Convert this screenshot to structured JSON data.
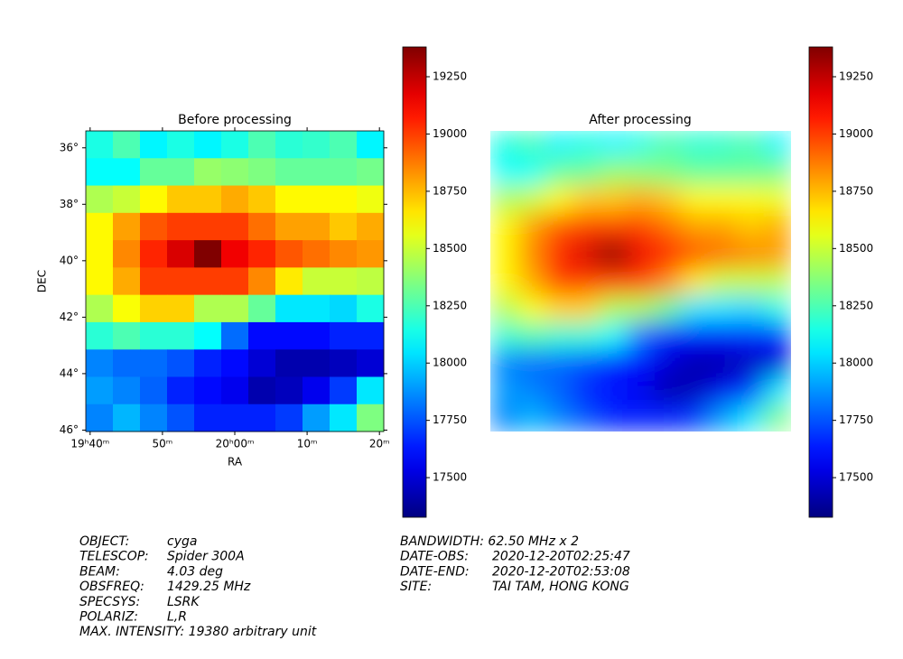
{
  "chart_data": [
    {
      "type": "heatmap",
      "title": "Before processing",
      "xlabel": "RA",
      "ylabel": "DEC",
      "xlim": [
        39.4,
        80.6
      ],
      "xticks": [
        {
          "value": 40,
          "label": "19ʰ40ᵐ"
        },
        {
          "value": 50,
          "label": "50ᵐ"
        },
        {
          "value": 60,
          "label": "20ʰ00ᵐ"
        },
        {
          "value": 70,
          "label": "10ᵐ"
        },
        {
          "value": 80,
          "label": "20ᵐ"
        }
      ],
      "ylim": [
        35.4,
        46.05
      ],
      "yticks": [
        {
          "value": 36,
          "label": "36°"
        },
        {
          "value": 38,
          "label": "38°"
        },
        {
          "value": 40,
          "label": "40°"
        },
        {
          "value": 42,
          "label": "42°"
        },
        {
          "value": 44,
          "label": "44°"
        },
        {
          "value": 46,
          "label": "46°"
        }
      ],
      "colormap": "jet",
      "clim": [
        17327,
        19380
      ],
      "cticks": [
        17500,
        17750,
        18000,
        18250,
        18500,
        18750,
        19000,
        19250
      ],
      "values": [
        [
          18150,
          18250,
          18080,
          18150,
          18080,
          18150,
          18250,
          18180,
          18200,
          18250,
          18080
        ],
        [
          18100,
          18100,
          18300,
          18300,
          18400,
          18380,
          18350,
          18300,
          18300,
          18300,
          18330
        ],
        [
          18450,
          18500,
          18620,
          18720,
          18720,
          18780,
          18720,
          18620,
          18620,
          18620,
          18580
        ],
        [
          18620,
          18800,
          18950,
          19000,
          19000,
          19000,
          18900,
          18800,
          18800,
          18720,
          18780
        ],
        [
          18620,
          18850,
          19050,
          19200,
          19380,
          19150,
          19050,
          18950,
          18900,
          18850,
          18820
        ],
        [
          18620,
          18780,
          19000,
          19000,
          19000,
          19000,
          18850,
          18650,
          18500,
          18500,
          18480
        ],
        [
          18450,
          18600,
          18700,
          18700,
          18450,
          18450,
          18300,
          18050,
          18050,
          18020,
          18150
        ],
        [
          18180,
          18250,
          18180,
          18180,
          18100,
          17800,
          17600,
          17600,
          17600,
          17650,
          17650
        ],
        [
          17850,
          17800,
          17800,
          17750,
          17650,
          17600,
          17500,
          17420,
          17420,
          17450,
          17500
        ],
        [
          17900,
          17850,
          17780,
          17650,
          17600,
          17550,
          17420,
          17450,
          17550,
          17700,
          18050
        ],
        [
          17850,
          17950,
          17850,
          17750,
          17650,
          17650,
          17650,
          17700,
          17900,
          18050,
          18350
        ]
      ]
    },
    {
      "type": "smoothed-heatmap",
      "title": "After processing"
    }
  ],
  "info": {
    "left": [
      [
        "OBJECT:",
        "cyga"
      ],
      [
        "TELESCOP:",
        "Spider 300A"
      ],
      [
        "BEAM:",
        "4.03 deg"
      ],
      [
        "OBSFREQ:",
        "1429.25 MHz"
      ],
      [
        "SPECSYS:",
        "LSRK"
      ],
      [
        "POLARIZ:",
        "L,R"
      ],
      "MAX. INTENSITY: 19380 arbitrary unit"
    ],
    "right": [
      "BANDWIDTH: 62.50 MHz x 2",
      [
        "DATE-OBS:",
        "2020-12-20T02:25:47"
      ],
      [
        "DATE-END:",
        "2020-12-20T02:53:08"
      ],
      [
        "SITE:",
        "TAI TAM, HONG KONG"
      ]
    ]
  }
}
